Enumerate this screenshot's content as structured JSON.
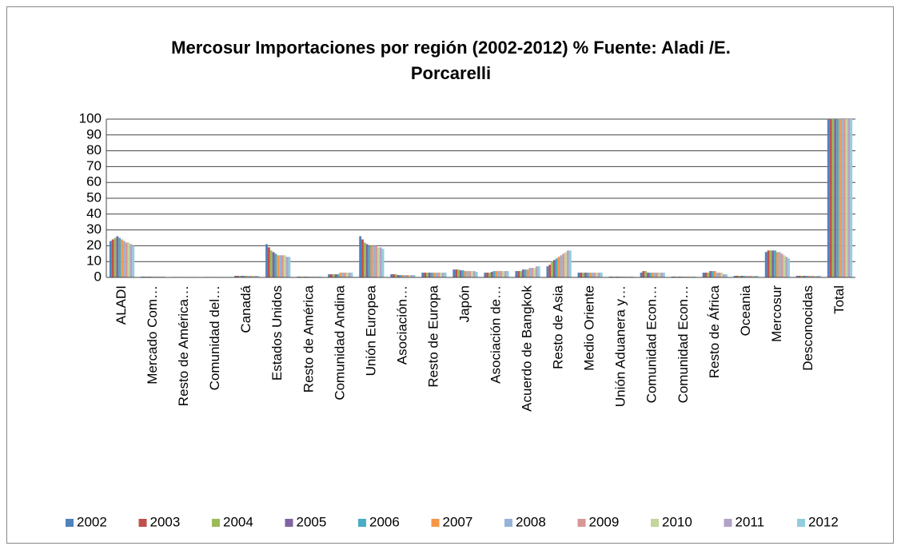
{
  "chart_data": {
    "type": "bar",
    "title": "Mercosur Importaciones por región (2002-2012) % Fuente: Aladi /E. Porcarelli",
    "categories": [
      "ALADI",
      "Mercado Com…",
      "Resto de América…",
      "Comunidad del…",
      "Canadá",
      "Estados Unidos",
      "Resto de América",
      "Comunidad Andina",
      "Unión Europea",
      "Asociación…",
      "Resto de Europa",
      "Japón",
      "Asociación de…",
      "Acuerdo de Bangkok",
      "Resto de Asia",
      "Medio Oriente",
      "Unión Aduanera y…",
      "Comunidad Econ…",
      "Comunidad Econ…",
      "Resto de África",
      "Oceania",
      "Mercosur",
      "Desconocidas",
      "Total"
    ],
    "series": [
      {
        "name": "2002",
        "color": "#4f81bd",
        "values": [
          23,
          0.5,
          0.3,
          0.3,
          1,
          21,
          0.5,
          2,
          26,
          2,
          3,
          5,
          3,
          4,
          7,
          3,
          0.5,
          3,
          0.5,
          3,
          1,
          16,
          1,
          100
        ]
      },
      {
        "name": "2003",
        "color": "#c0504d",
        "values": [
          24,
          0.5,
          0.3,
          0.3,
          1,
          19,
          0.5,
          2,
          24,
          2,
          3,
          5,
          3,
          4,
          8,
          3,
          0.5,
          4,
          0.5,
          3,
          1,
          17,
          1,
          100
        ]
      },
      {
        "name": "2004",
        "color": "#9bbb59",
        "values": [
          25,
          0.5,
          0.3,
          0.3,
          1,
          17,
          0.5,
          2,
          22,
          2,
          3,
          5,
          3,
          4,
          10,
          3,
          0.5,
          4,
          0.5,
          3,
          1,
          17,
          1,
          100
        ]
      },
      {
        "name": "2005",
        "color": "#8064a2",
        "values": [
          26,
          0.5,
          0.3,
          0.3,
          1,
          16,
          0.5,
          2,
          21,
          1.5,
          3,
          4.5,
          3.5,
          5,
          11,
          3,
          0.5,
          3,
          0.5,
          4,
          1,
          17,
          1,
          100
        ]
      },
      {
        "name": "2006",
        "color": "#4bacc6",
        "values": [
          25,
          0.5,
          0.3,
          0.3,
          1,
          15,
          0.5,
          2,
          20,
          1.5,
          3,
          4.5,
          4,
          5,
          12,
          3,
          0.5,
          3,
          0.5,
          4,
          1,
          17,
          1,
          100
        ]
      },
      {
        "name": "2007",
        "color": "#f79646",
        "values": [
          24,
          0.5,
          0.3,
          0.3,
          1,
          14,
          0.5,
          3,
          20,
          1.5,
          3,
          4,
          4,
          5,
          13,
          3,
          0.5,
          3,
          0.5,
          4,
          1,
          16,
          1,
          100
        ]
      },
      {
        "name": "2008",
        "color": "#95b3d7",
        "values": [
          23,
          0.5,
          0.3,
          0.3,
          1,
          14,
          0.5,
          3,
          20,
          1.5,
          3,
          4,
          4,
          6,
          14,
          3,
          0.5,
          3,
          0.5,
          3,
          1,
          16,
          1,
          100
        ]
      },
      {
        "name": "2009",
        "color": "#d99694",
        "values": [
          22,
          0.5,
          0.3,
          0.3,
          1,
          14,
          0.5,
          3,
          20,
          1.5,
          3,
          4,
          4,
          6,
          15,
          3,
          0.5,
          3,
          0.5,
          3,
          1,
          15,
          1,
          100
        ]
      },
      {
        "name": "2010",
        "color": "#c3d69b",
        "values": [
          22,
          0.5,
          0.3,
          0.3,
          1,
          14,
          0.5,
          3,
          19,
          1.5,
          3,
          4,
          4,
          6,
          16,
          3,
          0.5,
          3,
          0.5,
          3,
          1,
          14,
          1,
          100
        ]
      },
      {
        "name": "2011",
        "color": "#b3a2c7",
        "values": [
          21,
          0.5,
          0.3,
          0.3,
          1,
          13,
          0.5,
          3,
          19,
          1.5,
          3,
          4,
          4,
          7,
          17,
          3,
          0.5,
          3,
          0.5,
          2,
          1,
          13,
          1,
          100
        ]
      },
      {
        "name": "2012",
        "color": "#93cddd",
        "values": [
          20,
          0.5,
          0.3,
          0.3,
          1,
          13,
          0.5,
          3,
          18,
          1.5,
          3,
          3.5,
          4,
          7,
          17,
          3,
          0.5,
          3,
          0.5,
          2,
          1,
          12,
          1,
          100
        ]
      }
    ],
    "ylim": [
      0,
      100
    ],
    "yticks": [
      0,
      10,
      20,
      30,
      40,
      50,
      60,
      70,
      80,
      90,
      100
    ],
    "grid": true,
    "legend": "bottom"
  }
}
